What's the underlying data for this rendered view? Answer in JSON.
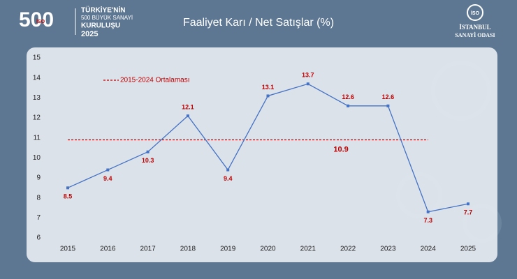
{
  "logo_left": {
    "number": "500",
    "badge": "İSO",
    "lines": [
      "TÜRKİYE'NİN",
      "500 BÜYÜK SANAYİ",
      "KURULUŞU",
      "2025"
    ]
  },
  "logo_right": {
    "badge": "İSO",
    "lines": [
      "İSTANBUL",
      "SANAYİ ODASI"
    ]
  },
  "chart_data": {
    "type": "line",
    "title": "Faaliyet Karı / Net Satışlar (%)",
    "categories": [
      "2015",
      "2016",
      "2017",
      "2018",
      "2019",
      "2020",
      "2021",
      "2022",
      "2023",
      "2024",
      "2025"
    ],
    "values": [
      8.5,
      9.4,
      10.3,
      12.1,
      9.4,
      13.1,
      13.7,
      12.6,
      12.6,
      7.3,
      7.7
    ],
    "color": "#4472c4",
    "label_color": "#c00000",
    "ylim": [
      6,
      15
    ],
    "yticks": [
      6,
      7,
      8,
      9,
      10,
      11,
      12,
      13,
      14,
      15
    ],
    "average": {
      "label": "2015-2024 Ortalaması",
      "value": 10.9,
      "color": "#c00000"
    }
  }
}
